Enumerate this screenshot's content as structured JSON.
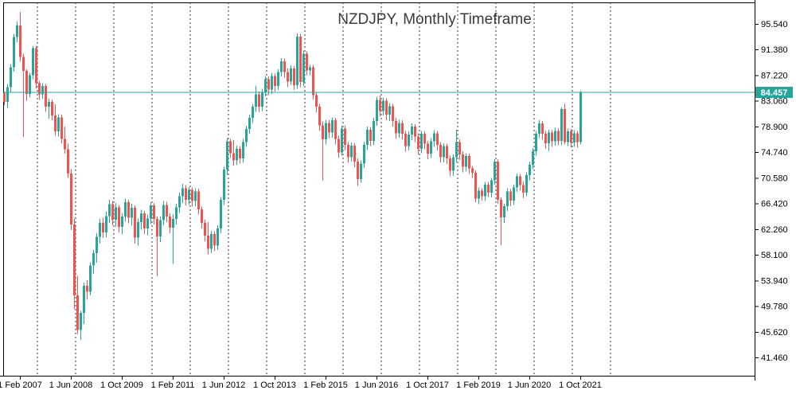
{
  "window": {
    "title": "NZDJPY, Monthly Timeframe"
  },
  "chart_data": {
    "type": "candlestick",
    "symbol": "NZDJPY",
    "timeframe": "Monthly",
    "title": "NZDJPY, Monthly Timeframe",
    "up_color": "#26a69a",
    "down_color": "#ef5350",
    "current_price_line_color": "#26a69a",
    "badge_color": "#26a69a",
    "grid_color": "#333333",
    "axis_color": "#000000",
    "background_color": "#ffffff",
    "current_price": 84.457,
    "current_price_label": "84.457",
    "y_axis": {
      "tick_labels": [
        "95.540",
        "91.380",
        "87.220",
        "83.060",
        "78.900",
        "74.740",
        "70.580",
        "66.420",
        "62.260",
        "58.100",
        "53.940",
        "49.780",
        "45.620",
        "41.460"
      ],
      "tick_values": [
        95.54,
        91.38,
        87.22,
        83.06,
        78.9,
        74.74,
        70.58,
        66.42,
        62.26,
        58.1,
        53.94,
        49.78,
        45.62,
        41.46
      ],
      "visible_range": [
        38.5,
        99.0
      ]
    },
    "x_axis": {
      "labels": [
        "1 Feb 2007",
        "1 Jun 2008",
        "1 Oct 2009",
        "1 Feb 2011",
        "1 Jun 2012",
        "1 Oct 2013",
        "1 Feb 2015",
        "1 Jun 2016",
        "1 Oct 2017",
        "1 Feb 2019",
        "1 Jun 2020",
        "1 Oct 2021"
      ],
      "first_label_candle_index": 5,
      "candles_per_label": 16,
      "grid_interval_months": 12
    },
    "ohlc": [
      [
        84.3,
        84.6,
        82.3,
        82.9
      ],
      [
        82.9,
        85.8,
        81.9,
        85.3
      ],
      [
        85.3,
        89.0,
        84.4,
        88.5
      ],
      [
        88.5,
        93.9,
        87.8,
        93.4
      ],
      [
        93.4,
        95.9,
        92.6,
        95.3
      ],
      [
        95.3,
        97.5,
        89.4,
        90.2
      ],
      [
        90.2,
        90.7,
        77.2,
        87.9
      ],
      [
        87.9,
        88.2,
        83.1,
        84.2
      ],
      [
        84.2,
        87.6,
        83.6,
        87.2
      ],
      [
        87.2,
        92.0,
        86.6,
        91.6
      ],
      [
        91.6,
        92.0,
        85.1,
        85.9
      ],
      [
        85.9,
        86.3,
        83.2,
        84.1
      ],
      [
        84.1,
        85.9,
        83.4,
        85.5
      ],
      [
        85.5,
        85.8,
        81.3,
        82.1
      ],
      [
        82.1,
        83.5,
        80.2,
        82.9
      ],
      [
        82.9,
        83.3,
        79.9,
        80.7
      ],
      [
        80.7,
        82.5,
        77.4,
        78.1
      ],
      [
        78.1,
        80.9,
        77.3,
        80.4
      ],
      [
        80.4,
        80.8,
        76.1,
        76.9
      ],
      [
        76.9,
        78.9,
        74.5,
        75.2
      ],
      [
        75.2,
        76.1,
        70.6,
        71.3
      ],
      [
        71.3,
        72.0,
        62.1,
        63.0
      ],
      [
        63.0,
        64.0,
        49.3,
        51.5
      ],
      [
        51.5,
        54.7,
        45.2,
        45.9
      ],
      [
        45.9,
        49.0,
        44.3,
        48.7
      ],
      [
        48.7,
        53.6,
        46.9,
        53.1
      ],
      [
        53.1,
        54.0,
        50.8,
        52.1
      ],
      [
        52.1,
        56.9,
        51.5,
        56.4
      ],
      [
        56.4,
        58.9,
        55.0,
        58.4
      ],
      [
        58.4,
        61.6,
        56.8,
        61.0
      ],
      [
        61.0,
        63.9,
        59.9,
        63.3
      ],
      [
        63.3,
        64.1,
        60.8,
        61.7
      ],
      [
        61.7,
        65.1,
        60.9,
        64.4
      ],
      [
        64.4,
        67.0,
        63.3,
        66.3
      ],
      [
        66.3,
        66.8,
        62.9,
        63.8
      ],
      [
        63.8,
        66.5,
        62.6,
        65.8
      ],
      [
        65.8,
        66.2,
        61.7,
        62.6
      ],
      [
        62.6,
        64.9,
        61.4,
        64.3
      ],
      [
        64.3,
        67.2,
        63.5,
        66.6
      ],
      [
        66.6,
        67.0,
        63.2,
        64.1
      ],
      [
        64.1,
        66.4,
        62.8,
        65.7
      ],
      [
        65.7,
        66.1,
        59.9,
        60.9
      ],
      [
        60.9,
        64.0,
        59.6,
        63.4
      ],
      [
        63.4,
        65.4,
        62.2,
        64.8
      ],
      [
        64.8,
        65.2,
        61.5,
        62.4
      ],
      [
        62.4,
        64.6,
        61.3,
        64.0
      ],
      [
        64.0,
        66.6,
        63.1,
        66.1
      ],
      [
        66.1,
        66.5,
        63.0,
        63.9
      ],
      [
        63.9,
        64.3,
        54.6,
        61.1
      ],
      [
        61.1,
        64.3,
        60.2,
        63.7
      ],
      [
        63.7,
        66.8,
        62.9,
        66.2
      ],
      [
        66.2,
        66.7,
        63.4,
        64.3
      ],
      [
        64.3,
        64.8,
        61.6,
        62.5
      ],
      [
        62.5,
        64.7,
        56.6,
        63.9
      ],
      [
        63.9,
        66.4,
        63.0,
        65.8
      ],
      [
        65.8,
        68.2,
        64.9,
        67.6
      ],
      [
        67.6,
        69.6,
        66.5,
        68.9
      ],
      [
        68.9,
        69.4,
        66.1,
        67.0
      ],
      [
        67.0,
        69.1,
        66.2,
        68.6
      ],
      [
        68.6,
        69.0,
        65.9,
        66.8
      ],
      [
        66.8,
        68.9,
        66.0,
        68.4
      ],
      [
        68.4,
        68.8,
        64.6,
        65.5
      ],
      [
        65.5,
        65.9,
        62.4,
        63.3
      ],
      [
        63.3,
        63.8,
        60.3,
        61.2
      ],
      [
        61.2,
        63.4,
        58.2,
        59.1
      ],
      [
        59.1,
        62.0,
        58.4,
        61.5
      ],
      [
        61.5,
        61.9,
        58.7,
        59.6
      ],
      [
        59.6,
        62.9,
        58.9,
        62.4
      ],
      [
        62.4,
        67.5,
        61.6,
        67.0
      ],
      [
        67.0,
        72.4,
        66.2,
        71.9
      ],
      [
        71.9,
        77.0,
        71.1,
        76.5
      ],
      [
        76.5,
        76.9,
        73.8,
        74.6
      ],
      [
        74.6,
        76.7,
        72.6,
        73.4
      ],
      [
        73.4,
        75.8,
        72.7,
        75.3
      ],
      [
        75.3,
        75.7,
        72.9,
        73.7
      ],
      [
        73.7,
        76.9,
        73.0,
        76.4
      ],
      [
        76.4,
        79.0,
        75.6,
        78.5
      ],
      [
        78.5,
        80.8,
        77.7,
        80.3
      ],
      [
        80.3,
        82.6,
        79.5,
        82.1
      ],
      [
        82.1,
        85.5,
        81.3,
        84.1
      ],
      [
        84.1,
        84.6,
        81.2,
        82.1
      ],
      [
        82.1,
        85.0,
        81.4,
        84.5
      ],
      [
        84.5,
        87.1,
        83.8,
        86.6
      ],
      [
        86.6,
        87.0,
        84.0,
        84.9
      ],
      [
        84.9,
        87.6,
        84.2,
        87.1
      ],
      [
        87.1,
        87.5,
        84.6,
        85.5
      ],
      [
        85.5,
        88.2,
        84.8,
        87.7
      ],
      [
        87.7,
        90.0,
        87.0,
        89.5
      ],
      [
        89.5,
        89.9,
        86.8,
        87.7
      ],
      [
        87.7,
        88.3,
        85.3,
        86.2
      ],
      [
        86.2,
        88.8,
        85.6,
        88.3
      ],
      [
        88.3,
        88.7,
        84.8,
        85.6
      ],
      [
        85.6,
        94.0,
        85.0,
        93.5
      ],
      [
        93.5,
        93.9,
        85.3,
        86.1
      ],
      [
        86.1,
        91.2,
        85.5,
        90.7
      ],
      [
        90.7,
        91.1,
        87.2,
        88.0
      ],
      [
        88.0,
        88.9,
        87.2,
        88.5
      ],
      [
        88.5,
        88.9,
        83.3,
        84.0
      ],
      [
        84.0,
        84.5,
        81.2,
        82.1
      ],
      [
        82.1,
        82.6,
        78.2,
        79.1
      ],
      [
        79.1,
        79.7,
        70.1,
        76.8
      ],
      [
        76.8,
        80.0,
        76.0,
        79.5
      ],
      [
        79.5,
        79.9,
        77.0,
        77.9
      ],
      [
        77.9,
        80.4,
        77.1,
        79.9
      ],
      [
        79.9,
        80.3,
        76.0,
        76.9
      ],
      [
        76.9,
        77.4,
        73.8,
        74.7
      ],
      [
        74.7,
        79.0,
        74.2,
        78.6
      ],
      [
        78.6,
        79.1,
        75.0,
        75.9
      ],
      [
        75.9,
        76.4,
        73.0,
        73.9
      ],
      [
        73.9,
        76.3,
        73.2,
        75.8
      ],
      [
        75.8,
        76.2,
        72.3,
        73.2
      ],
      [
        73.2,
        73.7,
        69.3,
        70.4
      ],
      [
        70.4,
        73.4,
        69.8,
        72.9
      ],
      [
        72.9,
        76.4,
        72.2,
        75.9
      ],
      [
        75.9,
        78.9,
        75.1,
        78.4
      ],
      [
        78.4,
        78.8,
        75.7,
        76.6
      ],
      [
        76.6,
        80.3,
        75.9,
        79.8
      ],
      [
        79.8,
        83.7,
        79.0,
        83.2
      ],
      [
        83.2,
        83.9,
        80.5,
        81.4
      ],
      [
        81.4,
        83.6,
        80.7,
        83.1
      ],
      [
        83.1,
        83.5,
        79.9,
        80.8
      ],
      [
        80.8,
        82.7,
        79.8,
        82.2
      ],
      [
        82.2,
        82.6,
        78.9,
        79.8
      ],
      [
        79.8,
        80.3,
        76.9,
        77.8
      ],
      [
        77.8,
        80.0,
        77.1,
        79.5
      ],
      [
        79.5,
        79.9,
        76.8,
        77.7
      ],
      [
        77.7,
        78.2,
        74.8,
        75.7
      ],
      [
        75.7,
        78.1,
        75.0,
        77.6
      ],
      [
        77.6,
        79.4,
        76.7,
        78.9
      ],
      [
        78.9,
        79.3,
        76.4,
        77.3
      ],
      [
        77.3,
        77.8,
        74.4,
        75.3
      ],
      [
        75.3,
        78.2,
        74.6,
        77.7
      ],
      [
        77.7,
        78.1,
        75.2,
        76.1
      ],
      [
        76.1,
        76.6,
        73.6,
        74.5
      ],
      [
        74.5,
        77.0,
        73.8,
        76.5
      ],
      [
        76.5,
        78.3,
        75.6,
        77.8
      ],
      [
        77.8,
        78.2,
        75.0,
        75.9
      ],
      [
        75.9,
        76.4,
        73.0,
        73.9
      ],
      [
        73.9,
        76.2,
        73.1,
        75.7
      ],
      [
        75.7,
        76.1,
        72.8,
        73.7
      ],
      [
        73.7,
        74.2,
        70.8,
        71.7
      ],
      [
        71.7,
        74.4,
        70.9,
        73.9
      ],
      [
        73.9,
        78.4,
        73.1,
        76.4
      ],
      [
        76.4,
        76.8,
        73.5,
        74.4
      ],
      [
        74.4,
        74.9,
        71.5,
        72.4
      ],
      [
        72.4,
        74.6,
        71.6,
        74.1
      ],
      [
        74.1,
        74.5,
        71.2,
        72.1
      ],
      [
        72.1,
        72.5,
        70.6,
        71.4
      ],
      [
        71.4,
        71.8,
        66.6,
        67.2
      ],
      [
        67.2,
        69.0,
        66.3,
        68.5
      ],
      [
        68.5,
        68.9,
        66.9,
        67.6
      ],
      [
        67.6,
        69.9,
        66.8,
        69.5
      ],
      [
        69.5,
        69.9,
        67.5,
        68.2
      ],
      [
        68.2,
        70.6,
        67.4,
        70.2
      ],
      [
        70.2,
        73.6,
        69.5,
        73.2
      ],
      [
        73.2,
        73.6,
        66.3,
        67.0
      ],
      [
        67.0,
        67.4,
        59.66,
        64.2
      ],
      [
        64.2,
        66.4,
        63.3,
        66.0
      ],
      [
        66.0,
        68.9,
        65.2,
        68.4
      ],
      [
        68.4,
        68.8,
        66.0,
        66.9
      ],
      [
        66.9,
        69.5,
        66.2,
        69.0
      ],
      [
        69.0,
        71.3,
        68.3,
        70.8
      ],
      [
        70.8,
        71.2,
        68.5,
        69.4
      ],
      [
        69.4,
        70.0,
        67.3,
        68.2
      ],
      [
        68.2,
        71.5,
        67.6,
        71.0
      ],
      [
        71.0,
        73.2,
        70.2,
        72.7
      ],
      [
        72.7,
        75.4,
        72.0,
        74.9
      ],
      [
        74.9,
        78.2,
        74.2,
        77.7
      ],
      [
        77.7,
        79.9,
        77.0,
        79.4
      ],
      [
        79.4,
        79.8,
        76.8,
        77.7
      ],
      [
        77.7,
        78.2,
        75.3,
        76.2
      ],
      [
        76.2,
        78.4,
        74.9,
        77.9
      ],
      [
        77.9,
        78.3,
        75.6,
        76.5
      ],
      [
        76.5,
        78.7,
        75.8,
        78.2
      ],
      [
        78.2,
        78.6,
        75.9,
        76.6
      ],
      [
        76.6,
        82.0,
        75.9,
        81.7
      ],
      [
        81.7,
        82.6,
        76.0,
        76.4
      ],
      [
        76.4,
        78.6,
        75.7,
        78.1
      ],
      [
        78.1,
        78.5,
        75.5,
        76.3
      ],
      [
        76.3,
        78.3,
        75.6,
        77.8
      ],
      [
        77.8,
        78.2,
        75.5,
        76.4
      ],
      [
        76.4,
        84.72,
        76.0,
        84.457
      ]
    ]
  }
}
